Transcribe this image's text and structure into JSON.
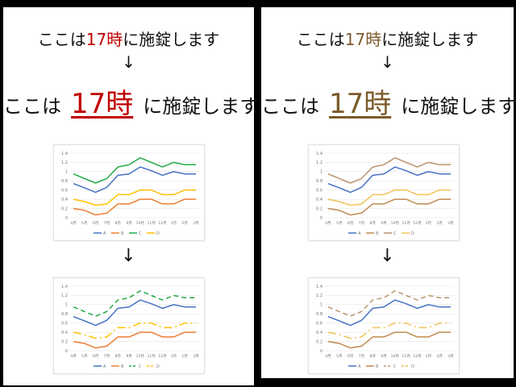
{
  "panels": [
    {
      "id": "left",
      "sentence": {
        "before": "ここは",
        "highlight": "17時",
        "after": "に施錠します"
      },
      "arrow": "↓",
      "highlight_color": "#c00000",
      "charts": [
        {
          "style": "color"
        },
        {
          "style": "dashed"
        }
      ]
    },
    {
      "id": "right",
      "sentence": {
        "before": "ここは",
        "highlight": "17時",
        "after": "に施錠します"
      },
      "arrow": "↓",
      "highlight_color": "#7b5a2a",
      "charts": [
        {
          "style": "color"
        },
        {
          "style": "dashed"
        }
      ]
    }
  ],
  "chart_data": {
    "type": "line",
    "categories": [
      "4月",
      "5月",
      "6月",
      "7月",
      "8月",
      "9月",
      "10月",
      "11月",
      "12月",
      "1月",
      "2月",
      "3月"
    ],
    "ylim": [
      0,
      1.4
    ],
    "yticks": [
      "0",
      "0.2",
      "0.4",
      "0.6",
      "0.8",
      "1",
      "1.2",
      "1.4"
    ],
    "series": [
      {
        "name": "A",
        "values": [
          0.74,
          0.65,
          0.55,
          0.66,
          0.92,
          0.95,
          1.1,
          1.02,
          0.92,
          1.0,
          0.95,
          0.95
        ]
      },
      {
        "name": "B",
        "values": [
          0.2,
          0.16,
          0.06,
          0.1,
          0.3,
          0.3,
          0.4,
          0.4,
          0.3,
          0.3,
          0.4,
          0.4
        ]
      },
      {
        "name": "C",
        "values": [
          0.95,
          0.85,
          0.75,
          0.85,
          1.1,
          1.15,
          1.3,
          1.2,
          1.1,
          1.2,
          1.15,
          1.15
        ]
      },
      {
        "name": "D",
        "values": [
          0.4,
          0.35,
          0.27,
          0.3,
          0.5,
          0.5,
          0.6,
          0.6,
          0.5,
          0.5,
          0.6,
          0.6
        ]
      }
    ],
    "palettes": {
      "left": [
        "#4472c4",
        "#ed7d31",
        "#22aa44",
        "#ffc000"
      ],
      "right": [
        "#4472c4",
        "#c08a50",
        "#b8946a",
        "#f2c25a"
      ]
    },
    "dash_patterns": [
      "",
      "",
      "6 4",
      "10 4 2 4"
    ],
    "grid": true,
    "legend": "bottom"
  }
}
